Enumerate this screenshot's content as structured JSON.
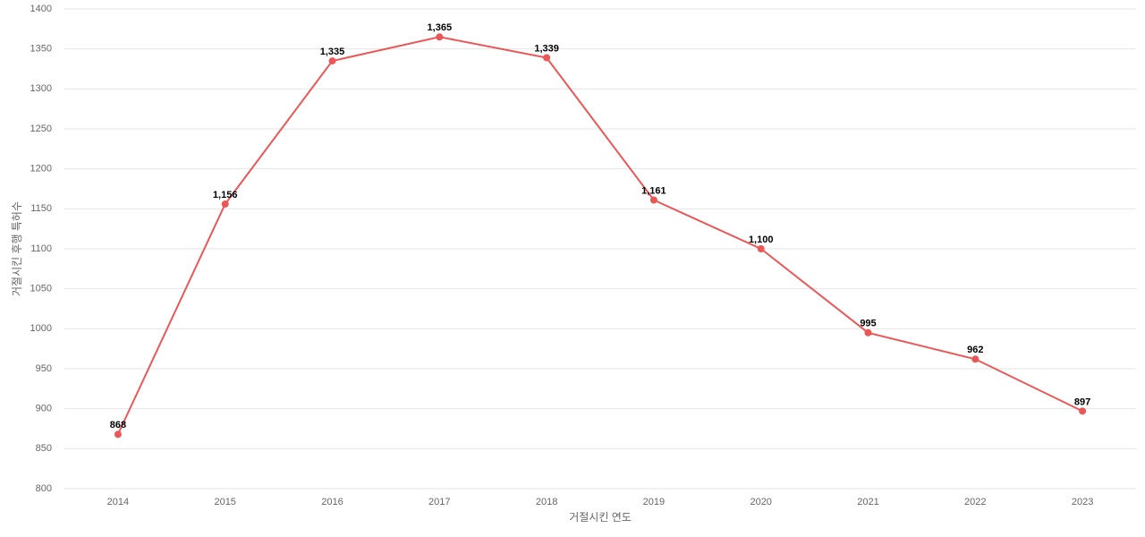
{
  "chart_data": {
    "type": "line",
    "x_label": "거절시킨 연도",
    "y_label": "거절시킨 후행 특허수",
    "categories": [
      "2014",
      "2015",
      "2016",
      "2017",
      "2018",
      "2019",
      "2020",
      "2021",
      "2022",
      "2023"
    ],
    "values": [
      868,
      1156,
      1335,
      1365,
      1339,
      1161,
      1100,
      995,
      962,
      897
    ],
    "value_labels": [
      "868",
      "1,156",
      "1,335",
      "1,365",
      "1,339",
      "1,161",
      "1,100",
      "995",
      "962",
      "897"
    ],
    "color": "#eb5757",
    "ylim": [
      800,
      1400
    ],
    "yticks": [
      800,
      850,
      900,
      950,
      1000,
      1050,
      1100,
      1150,
      1200,
      1250,
      1300,
      1350,
      1400
    ],
    "grid": true
  }
}
